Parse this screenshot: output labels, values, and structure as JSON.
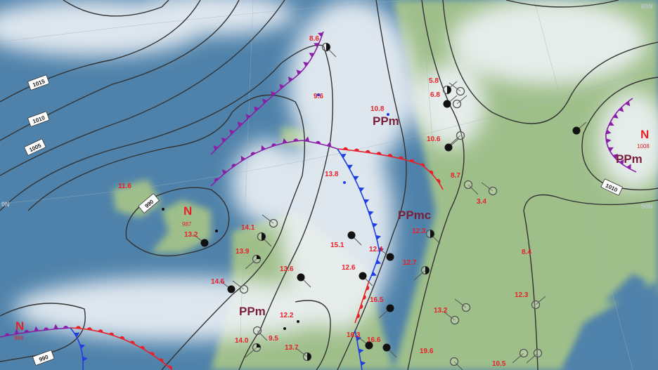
{
  "map": {
    "colors": {
      "ocean": "#4f82aa",
      "land": "#9fbf8a",
      "cloud": "#eef2f6",
      "isobar": "#333333",
      "warm_front": "#e8202a",
      "cold_front": "#1f3fe0",
      "occluded_front": "#8a1fa8",
      "temperature": "#e8202a",
      "air_mass": "#7a1f3a"
    },
    "latitude_labels": [
      "60N",
      "50N",
      "0N"
    ],
    "isobar_labels": [
      "1015",
      "1010",
      "1005",
      "990",
      "990",
      "1010"
    ],
    "lows": [
      {
        "symbol": "N",
        "pressure": "987"
      },
      {
        "symbol": "N",
        "pressure": "1008"
      },
      {
        "symbol": "N",
        "pressure": "984"
      }
    ],
    "air_masses": [
      "PPm",
      "PPm",
      "PPmc",
      "PPm"
    ],
    "temperatures": [
      "8.6",
      "9.6",
      "10.8",
      "5.8",
      "6.8",
      "10.6",
      "8.7",
      "3.4",
      "13.8",
      "11.6",
      "13.2",
      "14.1",
      "13.9",
      "13.6",
      "14.5",
      "12.2",
      "9.5",
      "14.0",
      "13.7",
      "15.1",
      "12.4",
      "12.7",
      "12.6",
      "16.5",
      "16.6",
      "16.3",
      "13.2",
      "19.6",
      "10.5",
      "12.3",
      "8.4",
      "12.3"
    ]
  }
}
